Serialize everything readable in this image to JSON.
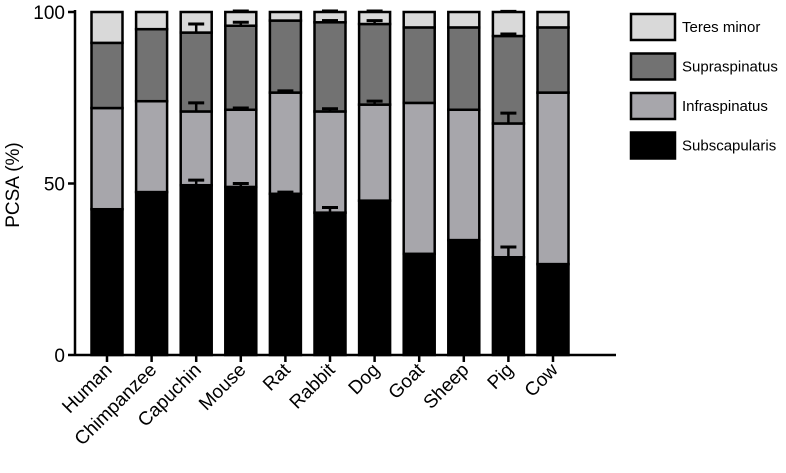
{
  "chart_data": {
    "type": "bar",
    "stacked": true,
    "xlabel": "",
    "ylabel": "PCSA (%)",
    "ylim": [
      0,
      100
    ],
    "yticks": [
      0,
      50,
      100
    ],
    "grid": false,
    "legend_position": "right",
    "categories": [
      "Human",
      "Chimpanzee",
      "Capuchin",
      "Mouse",
      "Rat",
      "Rabbit",
      "Dog",
      "Goat",
      "Sheep",
      "Pig",
      "Cow"
    ],
    "series": [
      {
        "name": "Subscapularis",
        "color": "#000000",
        "values": [
          42.5,
          47.5,
          49.5,
          49,
          47,
          41.5,
          45,
          29.5,
          33.5,
          28.5,
          26.5
        ],
        "error": [
          0,
          0,
          1.5,
          1,
          0.5,
          1.5,
          0,
          0,
          0,
          3,
          0
        ]
      },
      {
        "name": "Infraspinatus",
        "color": "#a7a6ab",
        "values": [
          29.5,
          26.5,
          21.5,
          22.5,
          29.5,
          29.5,
          28,
          44,
          38,
          39,
          50
        ],
        "error": [
          0,
          0,
          2.5,
          0.5,
          0.5,
          0.8,
          1,
          0,
          0,
          3,
          0
        ]
      },
      {
        "name": "Supraspinatus",
        "color": "#727272",
        "values": [
          19,
          21,
          23,
          24.5,
          21,
          26,
          23.5,
          22,
          24,
          25.5,
          19
        ],
        "error": [
          0,
          0,
          2.5,
          1,
          0,
          0.5,
          1,
          0,
          0,
          0.6,
          0
        ]
      },
      {
        "name": "Teres minor",
        "color": "#d9d9d9",
        "values": [
          9,
          5,
          6,
          4,
          2.5,
          3,
          3.5,
          4.5,
          4.5,
          7,
          4.5
        ],
        "error": [
          0,
          0,
          0,
          0.3,
          0,
          0.3,
          0.3,
          0,
          0,
          0.2,
          0
        ]
      }
    ],
    "legend_order": [
      "Teres minor",
      "Supraspinatus",
      "Infraspinatus",
      "Subscapularis"
    ]
  }
}
